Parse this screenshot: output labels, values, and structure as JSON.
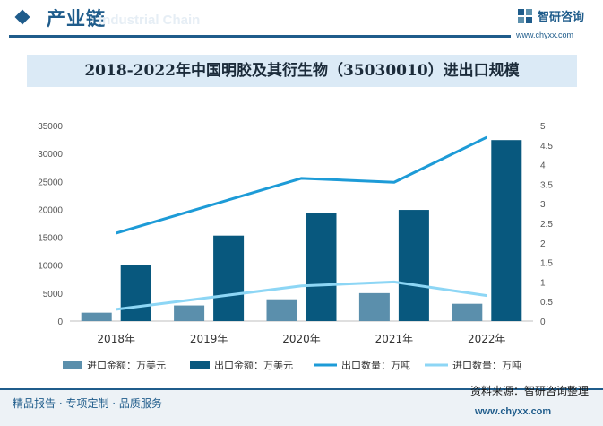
{
  "header": {
    "section_title": "产业链",
    "section_subtitle": "Industrial Chain",
    "logo_name": "智研咨询",
    "logo_url": "www.chyxx.com"
  },
  "colors": {
    "brand": "#1f5c8b",
    "import_amount_bar": "#5b8fac",
    "export_amount_bar": "#08587e",
    "export_quantity_line": "#1d9bd7",
    "import_quantity_line": "#8dd6f5"
  },
  "chart_data": {
    "type": "bar",
    "title": "2018-2022年中国明胶及其衍生物（35030010）进出口规模",
    "categories": [
      "2018年",
      "2019年",
      "2020年",
      "2021年",
      "2022年"
    ],
    "series": [
      {
        "name": "进口金额：万美元",
        "kind": "bar",
        "axis": "left",
        "values": [
          1500,
          2800,
          3900,
          5000,
          3100
        ]
      },
      {
        "name": "出口金额：万美元",
        "kind": "bar",
        "axis": "left",
        "values": [
          10000,
          15300,
          19400,
          19900,
          32400
        ]
      },
      {
        "name": "出口数量：万吨",
        "kind": "line",
        "axis": "right",
        "values": [
          2.25,
          2.95,
          3.65,
          3.55,
          4.7
        ]
      },
      {
        "name": "进口数量：万吨",
        "kind": "line",
        "axis": "right",
        "values": [
          0.3,
          0.6,
          0.9,
          1.0,
          0.65
        ]
      }
    ],
    "y_left": {
      "range": [
        0,
        35000
      ],
      "ticks": [
        "0",
        "5000",
        "10000",
        "15000",
        "20000",
        "25000",
        "30000",
        "35000"
      ]
    },
    "y_right": {
      "range": [
        0,
        5
      ],
      "ticks": [
        "0",
        "0.5",
        "1",
        "1.5",
        "2",
        "2.5",
        "3",
        "3.5",
        "4",
        "4.5",
        "5"
      ]
    },
    "grid": false,
    "legend_position": "bottom"
  },
  "footer": {
    "tagline": "精品报告 · 专项定制 · 品质服务",
    "source": "资料来源：智研咨询整理",
    "url": "www.chyxx.com"
  }
}
